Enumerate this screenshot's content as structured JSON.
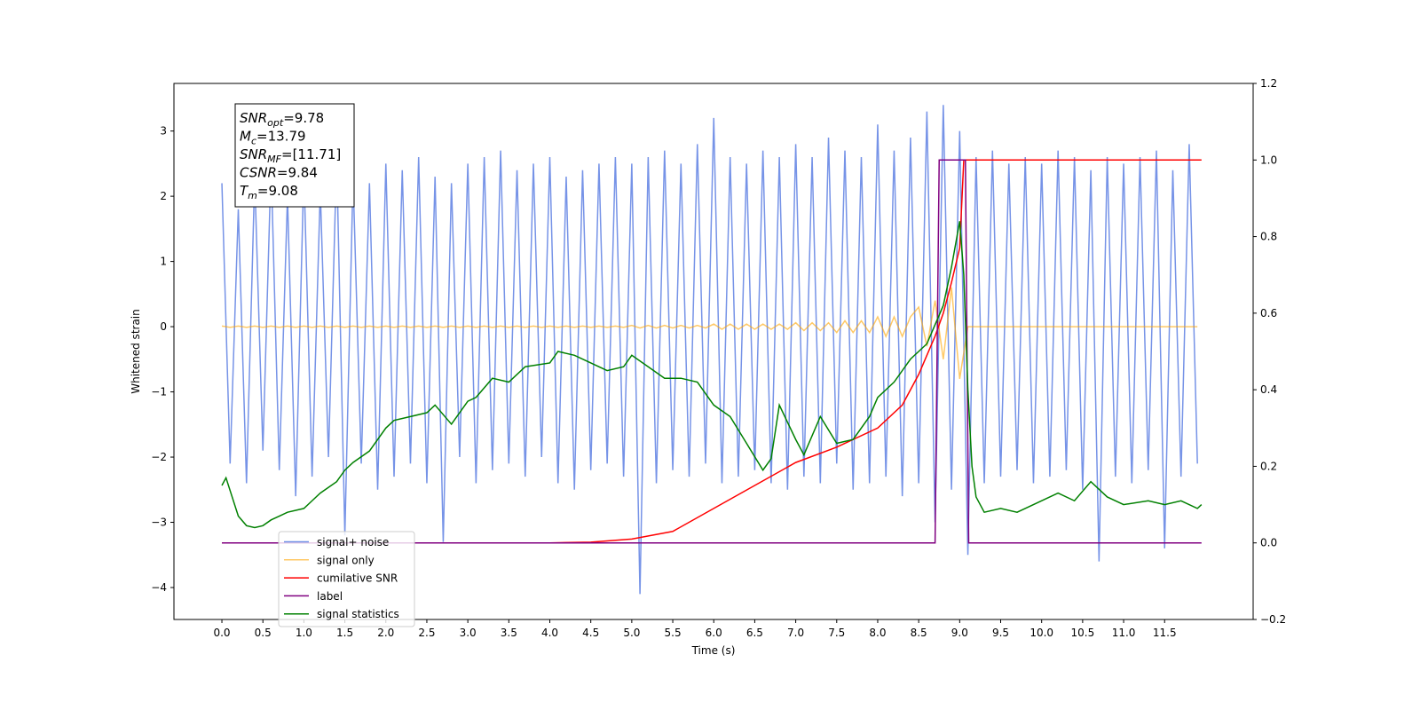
{
  "chart_data": {
    "type": "line",
    "xlabel": "Time (s)",
    "ylabel": "Whitened strain",
    "xlim": [
      -0.585,
      12.58
    ],
    "ylim": [
      -4.49,
      3.73
    ],
    "y2lim": [
      -0.2,
      1.2
    ],
    "xticks": [
      {
        "value": 0,
        "label": "0.0"
      },
      {
        "value": 0.5,
        "label": "0.5"
      },
      {
        "value": 1,
        "label": "1.0"
      },
      {
        "value": 1.5,
        "label": "1.5"
      },
      {
        "value": 2,
        "label": "2.0"
      },
      {
        "value": 2.5,
        "label": "2.5"
      },
      {
        "value": 3,
        "label": "3.0"
      },
      {
        "value": 3.5,
        "label": "3.5"
      },
      {
        "value": 4,
        "label": "4.0"
      },
      {
        "value": 4.5,
        "label": "4.5"
      },
      {
        "value": 5,
        "label": "5.0"
      },
      {
        "value": 5.5,
        "label": "5.5"
      },
      {
        "value": 6,
        "label": "6.0"
      },
      {
        "value": 6.5,
        "label": "6.5"
      },
      {
        "value": 7,
        "label": "7.0"
      },
      {
        "value": 7.5,
        "label": "7.5"
      },
      {
        "value": 8,
        "label": "8.0"
      },
      {
        "value": 8.5,
        "label": "8.5"
      },
      {
        "value": 9,
        "label": "9.0"
      },
      {
        "value": 9.5,
        "label": "9.5"
      },
      {
        "value": 10,
        "label": "10.0"
      },
      {
        "value": 10.5,
        "label": "10.5"
      },
      {
        "value": 11,
        "label": "11.0"
      },
      {
        "value": 11.5,
        "label": "11.5"
      }
    ],
    "yticks": [
      {
        "value": -4,
        "label": "−4"
      },
      {
        "value": -3,
        "label": "−3"
      },
      {
        "value": -2,
        "label": "−2"
      },
      {
        "value": -1,
        "label": "−1"
      },
      0,
      1,
      2,
      3
    ],
    "y2ticks": [
      {
        "value": -0.2,
        "label": "−0.2"
      },
      {
        "value": 0,
        "label": "0.0"
      },
      {
        "value": 0.2,
        "label": "0.2"
      },
      {
        "value": 0.4,
        "label": "0.4"
      },
      {
        "value": 0.6,
        "label": "0.6"
      },
      {
        "value": 0.8,
        "label": "0.8"
      },
      {
        "value": 1,
        "label": "1.0"
      },
      {
        "value": 1.2,
        "label": "1.2"
      }
    ],
    "legend": "lower left",
    "annotations": [
      {
        "symbol": "SNR",
        "subscript": "opt",
        "text": "=9.78"
      },
      {
        "symbol": "M",
        "subscript": "c",
        "text": "=13.79"
      },
      {
        "symbol": "SNR",
        "subscript": "MF",
        "text": "=[11.71]"
      },
      {
        "symbol": "CSNR",
        "subscript": "",
        "text": "=9.84"
      },
      {
        "symbol": "T",
        "subscript": "m",
        "text": "=9.08"
      }
    ],
    "x": [
      0.0,
      0.1,
      0.2,
      0.3,
      0.4,
      0.5,
      0.6,
      0.7,
      0.8,
      0.9,
      1.0,
      1.1,
      1.2,
      1.3,
      1.4,
      1.5,
      1.6,
      1.7,
      1.8,
      1.9,
      2.0,
      2.1,
      2.2,
      2.3,
      2.4,
      2.5,
      2.6,
      2.7,
      2.8,
      2.9,
      3.0,
      3.1,
      3.2,
      3.3,
      3.4,
      3.5,
      3.6,
      3.7,
      3.8,
      3.9,
      4.0,
      4.1,
      4.2,
      4.3,
      4.4,
      4.5,
      4.6,
      4.7,
      4.8,
      4.9,
      5.0,
      5.1,
      5.2,
      5.3,
      5.4,
      5.5,
      5.6,
      5.7,
      5.8,
      5.9,
      6.0,
      6.1,
      6.2,
      6.3,
      6.4,
      6.5,
      6.6,
      6.7,
      6.8,
      6.9,
      7.0,
      7.1,
      7.2,
      7.3,
      7.4,
      7.5,
      7.6,
      7.7,
      7.8,
      7.9,
      8.0,
      8.1,
      8.2,
      8.3,
      8.4,
      8.5,
      8.6,
      8.7,
      8.8,
      8.9,
      9.0,
      9.1,
      9.2,
      9.3,
      9.4,
      9.5,
      9.6,
      9.7,
      9.8,
      9.9,
      10.0,
      10.1,
      10.2,
      10.3,
      10.4,
      10.5,
      10.6,
      10.7,
      10.8,
      10.9,
      11.0,
      11.1,
      11.2,
      11.3,
      11.4,
      11.5,
      11.6,
      11.7,
      11.8,
      11.9
    ],
    "series": [
      {
        "name": "signal+ noise",
        "color": "#6f8de6",
        "axis": "y",
        "values": [
          2.2,
          -2.1,
          1.8,
          -2.4,
          2.3,
          -1.9,
          2.5,
          -2.2,
          2.0,
          -2.6,
          2.4,
          -2.3,
          2.1,
          -2.0,
          2.6,
          -3.2,
          2.3,
          -2.1,
          2.2,
          -2.5,
          2.5,
          -2.3,
          2.4,
          -2.1,
          2.6,
          -2.4,
          2.3,
          -3.3,
          2.2,
          -2.0,
          2.5,
          -2.4,
          2.6,
          -2.2,
          2.7,
          -2.1,
          2.4,
          -2.3,
          2.5,
          -2.0,
          2.6,
          -2.4,
          2.3,
          -2.5,
          2.4,
          -2.2,
          2.5,
          -2.1,
          2.6,
          -2.3,
          2.5,
          -4.1,
          2.6,
          -2.4,
          2.7,
          -2.2,
          2.5,
          -2.3,
          2.8,
          -2.1,
          3.2,
          -2.4,
          2.6,
          -2.3,
          2.5,
          -2.2,
          2.7,
          -2.4,
          2.6,
          -2.5,
          2.8,
          -2.3,
          2.6,
          -2.4,
          2.9,
          -2.1,
          2.7,
          -2.5,
          2.6,
          -2.4,
          3.1,
          -2.3,
          2.7,
          -2.6,
          2.9,
          -2.4,
          3.3,
          -3.0,
          3.4,
          -2.5,
          3.0,
          -3.5,
          2.6,
          -2.4,
          2.7,
          -2.3,
          2.5,
          -2.2,
          2.6,
          -2.4,
          2.5,
          -2.3,
          2.7,
          -2.2,
          2.6,
          -2.5,
          2.4,
          -3.6,
          2.6,
          -2.3,
          2.5,
          -2.4,
          2.6,
          -2.2,
          2.7,
          -3.4,
          2.4,
          -2.3,
          2.8,
          -2.1
        ]
      },
      {
        "name": "signal only",
        "color": "#ffa500",
        "axis": "y",
        "values": [
          0.01,
          -0.01,
          0.01,
          -0.01,
          0.01,
          -0.01,
          0.01,
          -0.01,
          0.01,
          -0.01,
          0.01,
          -0.01,
          0.01,
          -0.01,
          0.01,
          -0.01,
          0.01,
          -0.01,
          0.01,
          -0.01,
          0.01,
          -0.01,
          0.01,
          -0.01,
          0.01,
          -0.01,
          0.01,
          -0.01,
          0.01,
          -0.01,
          0.01,
          -0.01,
          0.01,
          -0.01,
          0.01,
          -0.01,
          0.01,
          -0.01,
          0.01,
          -0.01,
          0.01,
          -0.01,
          0.01,
          -0.01,
          0.01,
          -0.01,
          0.01,
          -0.01,
          0.01,
          -0.01,
          0.02,
          -0.02,
          0.02,
          -0.02,
          0.02,
          -0.02,
          0.02,
          -0.02,
          0.02,
          -0.02,
          0.04,
          -0.04,
          0.04,
          -0.04,
          0.04,
          -0.04,
          0.04,
          -0.04,
          0.04,
          -0.04,
          0.06,
          -0.06,
          0.06,
          -0.06,
          0.06,
          -0.09,
          0.09,
          -0.09,
          0.09,
          -0.09,
          0.15,
          -0.15,
          0.15,
          -0.15,
          0.15,
          0.3,
          -0.3,
          0.4,
          -0.5,
          0.6,
          -0.8,
          0,
          0,
          0,
          0,
          0,
          0,
          0,
          0,
          0,
          0,
          0,
          0,
          0,
          0,
          0,
          0,
          0,
          0,
          0,
          0,
          0,
          0,
          0,
          0,
          0,
          0,
          0,
          0,
          0
        ]
      },
      {
        "name": "cumilative SNR",
        "color": "#ff0000",
        "axis": "y2",
        "x": [
          0,
          4.0,
          4.5,
          5.0,
          5.5,
          6.0,
          6.5,
          7.0,
          7.5,
          8.0,
          8.3,
          8.5,
          8.7,
          8.8,
          8.9,
          9.0,
          9.05,
          11.95
        ],
        "values": [
          0,
          0,
          0.002,
          0.01,
          0.03,
          0.09,
          0.15,
          0.21,
          0.25,
          0.3,
          0.36,
          0.44,
          0.54,
          0.6,
          0.68,
          0.77,
          1.0,
          1.0
        ]
      },
      {
        "name": "label",
        "color": "#800080",
        "axis": "y2",
        "x": [
          0,
          8.7,
          8.75,
          9.07,
          9.11,
          11.95
        ],
        "values": [
          0,
          0,
          1,
          1,
          0,
          0
        ]
      },
      {
        "name": "signal statistics",
        "color": "#008000",
        "axis": "y2",
        "x": [
          0.0,
          0.05,
          0.2,
          0.3,
          0.4,
          0.5,
          0.6,
          0.7,
          0.8,
          1.0,
          1.1,
          1.2,
          1.4,
          1.5,
          1.6,
          1.8,
          2.0,
          2.1,
          2.3,
          2.5,
          2.6,
          2.8,
          3.0,
          3.1,
          3.3,
          3.5,
          3.7,
          4.0,
          4.1,
          4.3,
          4.5,
          4.7,
          4.9,
          5.0,
          5.2,
          5.4,
          5.6,
          5.8,
          6.0,
          6.2,
          6.4,
          6.6,
          6.7,
          6.8,
          7.0,
          7.1,
          7.3,
          7.5,
          7.7,
          7.9,
          8.0,
          8.2,
          8.4,
          8.6,
          8.8,
          8.9,
          9.0,
          9.05,
          9.1,
          9.15,
          9.2,
          9.3,
          9.5,
          9.7,
          9.9,
          10.2,
          10.4,
          10.6,
          10.8,
          11.0,
          11.3,
          11.5,
          11.7,
          11.9,
          11.95
        ],
        "values": [
          0.15,
          0.17,
          0.07,
          0.045,
          0.04,
          0.045,
          0.06,
          0.07,
          0.08,
          0.09,
          0.11,
          0.13,
          0.16,
          0.19,
          0.21,
          0.24,
          0.3,
          0.32,
          0.33,
          0.34,
          0.36,
          0.31,
          0.37,
          0.38,
          0.43,
          0.42,
          0.46,
          0.47,
          0.5,
          0.49,
          0.47,
          0.45,
          0.46,
          0.49,
          0.46,
          0.43,
          0.43,
          0.42,
          0.36,
          0.33,
          0.26,
          0.19,
          0.22,
          0.36,
          0.27,
          0.23,
          0.33,
          0.26,
          0.27,
          0.33,
          0.38,
          0.42,
          0.48,
          0.52,
          0.62,
          0.72,
          0.84,
          0.7,
          0.4,
          0.2,
          0.12,
          0.08,
          0.09,
          0.08,
          0.1,
          0.13,
          0.11,
          0.16,
          0.12,
          0.1,
          0.11,
          0.1,
          0.11,
          0.09,
          0.1
        ]
      }
    ]
  }
}
